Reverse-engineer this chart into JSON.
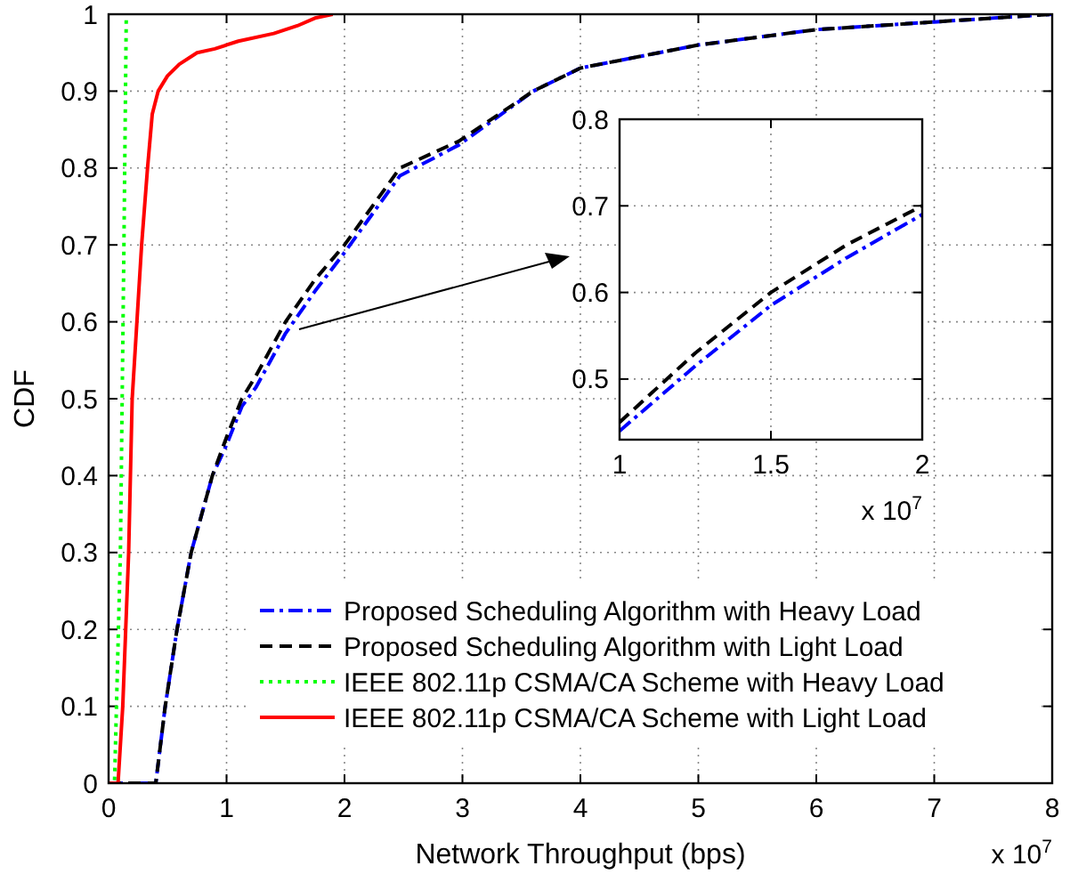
{
  "chart_data": [
    {
      "type": "line",
      "xlabel": "Network Throughput (bps)",
      "ylabel": "CDF",
      "xlim": [
        0,
        8
      ],
      "xticks": [
        0,
        1,
        2,
        3,
        4,
        5,
        6,
        7,
        8
      ],
      "ylim": [
        0,
        1
      ],
      "yticks": [
        0,
        0.1,
        0.2,
        0.3,
        0.4,
        0.5,
        0.6,
        0.7,
        0.8,
        0.9,
        1
      ],
      "grid": true,
      "legend": "bottom right",
      "annotations": [
        "x 10$^{7}$"
      ],
      "series": [
        {
          "name": "Proposed Scheduling Algorithm with Heavy Load",
          "color": "#0000ff",
          "line_style": "dashdot",
          "x": [
            0,
            0.4,
            0.48,
            0.58,
            0.7,
            0.88,
            1.0,
            1.13,
            1.25,
            1.5,
            1.75,
            2.0,
            2.47,
            2.97,
            3.6,
            4.0,
            4.5,
            5.0,
            6.0,
            7.0,
            8.0
          ],
          "values": [
            0,
            0,
            0.1,
            0.2,
            0.3,
            0.4,
            0.44,
            0.49,
            0.515,
            0.585,
            0.64,
            0.69,
            0.79,
            0.83,
            0.9,
            0.93,
            0.945,
            0.96,
            0.98,
            0.99,
            1
          ]
        },
        {
          "name": "Proposed Scheduling Algorithm with Light Load",
          "color": "#000000",
          "line_style": "dashed",
          "x": [
            0,
            0.4,
            0.48,
            0.58,
            0.7,
            0.88,
            1.0,
            1.13,
            1.25,
            1.5,
            1.75,
            2.0,
            2.47,
            2.97,
            3.6,
            4.0,
            4.5,
            5.0,
            6.0,
            7.0,
            8.0
          ],
          "values": [
            0,
            0,
            0.1,
            0.2,
            0.3,
            0.4,
            0.45,
            0.5,
            0.53,
            0.6,
            0.655,
            0.7,
            0.8,
            0.835,
            0.9,
            0.93,
            0.945,
            0.96,
            0.98,
            0.99,
            1
          ]
        },
        {
          "name": "IEEE 802.11p CSMA/CA Scheme with Heavy Load",
          "color": "#00ff00",
          "line_style": "dotted",
          "x": [
            0,
            0.05,
            0.1,
            0.13,
            0.15
          ],
          "values": [
            0,
            0,
            0.3,
            0.7,
            1
          ]
        },
        {
          "name": "IEEE 802.11p CSMA/CA Scheme with Light Load",
          "color": "#ff0000",
          "line_style": "solid",
          "x": [
            0,
            0.08,
            0.12,
            0.17,
            0.2,
            0.24,
            0.28,
            0.33,
            0.37,
            0.42,
            0.5,
            0.6,
            0.75,
            0.9,
            1.1,
            1.4,
            1.6,
            1.75,
            1.9
          ],
          "values": [
            0,
            0,
            0.1,
            0.3,
            0.5,
            0.6,
            0.7,
            0.8,
            0.87,
            0.9,
            0.92,
            0.935,
            0.95,
            0.955,
            0.965,
            0.975,
            0.985,
            0.995,
            1
          ]
        }
      ]
    },
    {
      "type": "line",
      "xlim": [
        1,
        2
      ],
      "xticks": [
        1,
        1.5,
        2
      ],
      "ylim": [
        0.43,
        0.8
      ],
      "yticks": [
        0.5,
        0.6,
        0.7,
        0.8
      ],
      "grid": true,
      "annotations": [
        "x 10$^{7}$"
      ],
      "series": [
        {
          "color": "#0000ff",
          "line_style": "dashdot",
          "x": [
            1,
            1.25,
            1.5,
            1.75,
            2
          ],
          "values": [
            0.44,
            0.515,
            0.585,
            0.64,
            0.69
          ]
        },
        {
          "color": "#000000",
          "line_style": "dashed",
          "x": [
            1,
            1.25,
            1.5,
            1.75,
            2
          ],
          "values": [
            0.45,
            0.53,
            0.6,
            0.655,
            0.7
          ]
        }
      ]
    }
  ]
}
